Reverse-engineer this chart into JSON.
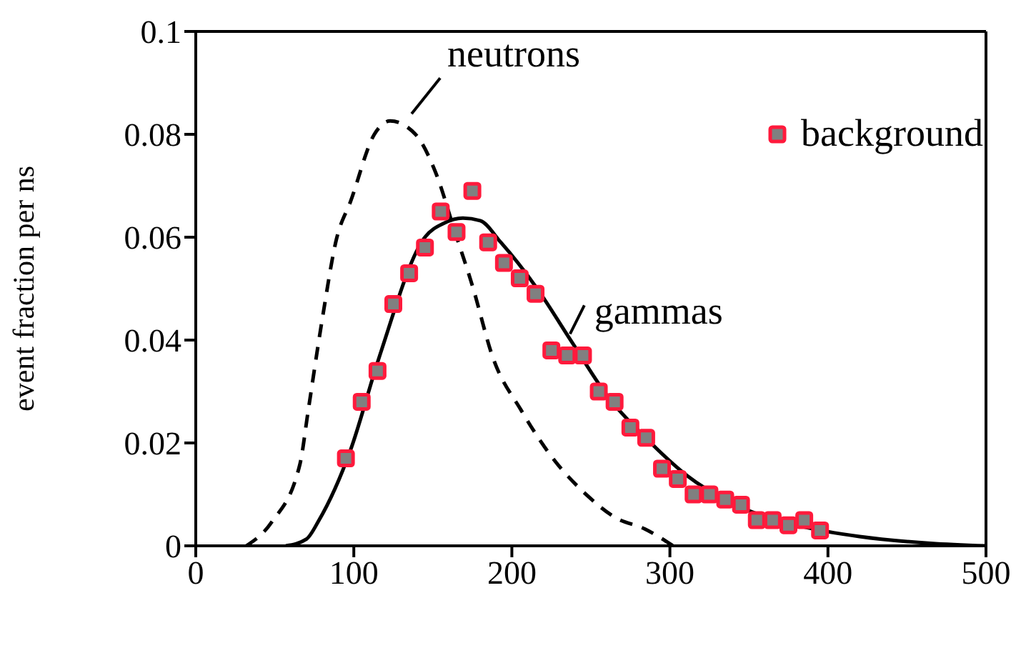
{
  "chart_data": {
    "type": "line",
    "ylabel": "event fraction per ns",
    "xlim": [
      0,
      500
    ],
    "xticks": [
      0,
      100,
      200,
      300,
      400,
      500
    ],
    "ylim": [
      0,
      0.1
    ],
    "yticks": [
      0,
      0.02,
      0.04,
      0.06,
      0.08,
      0.1
    ],
    "legend": "top right",
    "series": [
      {
        "name": "neutrons",
        "line_style": "dashed",
        "marker": "none",
        "color": "#000000",
        "x": [
          32,
          48,
          66,
          71,
          80,
          89,
          98,
          113,
          123,
          139,
          152,
          164,
          175,
          188,
          206,
          225,
          248,
          266,
          284,
          302
        ],
        "values": [
          0,
          0.0046,
          0.016,
          0.026,
          0.044,
          0.0596,
          0.067,
          0.08,
          0.0826,
          0.08,
          0.0724,
          0.061,
          0.0506,
          0.0366,
          0.0263,
          0.0174,
          0.0097,
          0.0054,
          0.0033,
          0
        ]
      },
      {
        "name": "gammas",
        "line_style": "solid",
        "marker": "none",
        "color": "#000000",
        "x": [
          57,
          70,
          78,
          98,
          116,
          145,
          157,
          169,
          180,
          193,
          216,
          238,
          261,
          284,
          311,
          347,
          383,
          420,
          465,
          500
        ],
        "values": [
          0,
          0.0013,
          0.005,
          0.0187,
          0.0366,
          0.06,
          0.0627,
          0.0637,
          0.0632,
          0.059,
          0.05,
          0.0396,
          0.0289,
          0.0212,
          0.0136,
          0.0072,
          0.0038,
          0.0018,
          0.0005,
          0
        ]
      },
      {
        "name": "background",
        "type": "scatter",
        "marker": "square",
        "color": "#808080",
        "x": [
          95,
          105,
          115,
          125,
          135,
          145,
          155,
          165,
          175,
          185,
          195,
          205,
          215,
          225,
          235,
          245,
          255,
          265,
          275,
          285,
          295,
          305,
          315,
          325,
          335,
          345,
          355,
          365,
          375,
          385,
          395
        ],
        "values": [
          0.017,
          0.028,
          0.034,
          0.047,
          0.053,
          0.058,
          0.065,
          0.061,
          0.069,
          0.059,
          0.055,
          0.052,
          0.049,
          0.038,
          0.037,
          0.037,
          0.03,
          0.028,
          0.023,
          0.021,
          0.015,
          0.013,
          0.01,
          0.01,
          0.009,
          0.008,
          0.005,
          0.005,
          0.004,
          0.005,
          0.003
        ]
      }
    ]
  }
}
